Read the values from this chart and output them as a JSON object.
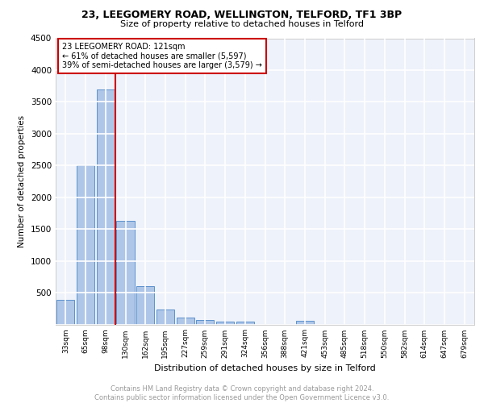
{
  "title": "23, LEEGOMERY ROAD, WELLINGTON, TELFORD, TF1 3BP",
  "subtitle": "Size of property relative to detached houses in Telford",
  "xlabel": "Distribution of detached houses by size in Telford",
  "ylabel": "Number of detached properties",
  "categories": [
    "33sqm",
    "65sqm",
    "98sqm",
    "130sqm",
    "162sqm",
    "195sqm",
    "227sqm",
    "259sqm",
    "291sqm",
    "324sqm",
    "356sqm",
    "388sqm",
    "421sqm",
    "453sqm",
    "485sqm",
    "518sqm",
    "550sqm",
    "582sqm",
    "614sqm",
    "647sqm",
    "679sqm"
  ],
  "values": [
    390,
    2500,
    3700,
    1625,
    600,
    240,
    110,
    75,
    50,
    45,
    0,
    0,
    60,
    0,
    0,
    0,
    0,
    0,
    0,
    0,
    0
  ],
  "bar_color": "#aec6e8",
  "bar_edge_color": "#4a86c8",
  "marker_label": "23 LEEGOMERY ROAD: 121sqm",
  "annotation_line1": "← 61% of detached houses are smaller (5,597)",
  "annotation_line2": "39% of semi-detached houses are larger (3,579) →",
  "vline_color": "#cc0000",
  "box_edge_color": "#cc0000",
  "ylim": [
    0,
    4500
  ],
  "yticks": [
    0,
    500,
    1000,
    1500,
    2000,
    2500,
    3000,
    3500,
    4000,
    4500
  ],
  "footer_line1": "Contains HM Land Registry data © Crown copyright and database right 2024.",
  "footer_line2": "Contains public sector information licensed under the Open Government Licence v3.0.",
  "bg_color": "#eef2fa",
  "grid_color": "#ffffff"
}
